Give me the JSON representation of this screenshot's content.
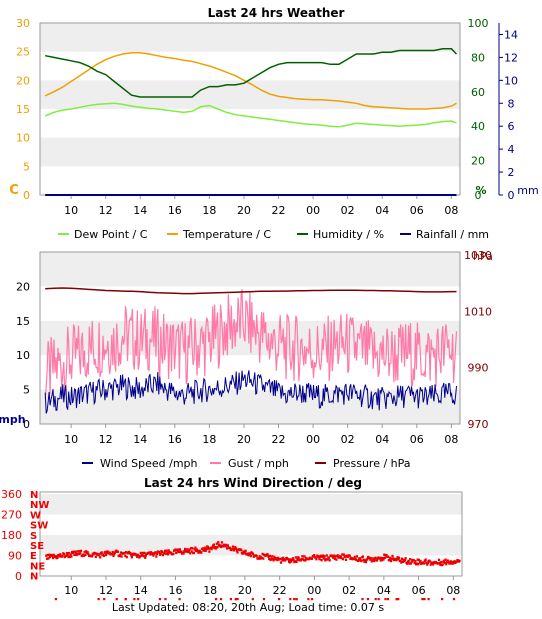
{
  "colors": {
    "dew_point": "#80ee40",
    "temperature": "#f0a000",
    "humidity": "#006000",
    "rainfall": "#000080",
    "wind_speed": "#00008b",
    "gust": "#ff7aa8",
    "pressure": "#800000",
    "wind_dir": "#ee0000",
    "grid_band": "#eeeeee"
  },
  "footer": {
    "text": "Last Updated: 08:20, 20th Aug; Load time: 0.07 s"
  },
  "chart_data": [
    {
      "type": "line",
      "title": "Last 24 hrs Weather",
      "x_ticks": [
        "10",
        "12",
        "14",
        "16",
        "18",
        "20",
        "22",
        "00",
        "02",
        "04",
        "06",
        "08"
      ],
      "y_left_label": "C",
      "y_left_ticks": [
        0,
        5,
        10,
        15,
        20,
        25,
        30
      ],
      "y_right1_label": "%",
      "y_right1_ticks": [
        0,
        20,
        40,
        60,
        80,
        100
      ],
      "y_right2_label": "mm",
      "y_right2_ticks": [
        0,
        2,
        4,
        6,
        8,
        10,
        12,
        14
      ],
      "x": [
        8.5,
        9,
        9.5,
        10,
        10.5,
        11,
        11.5,
        12,
        12.5,
        13,
        13.5,
        14,
        14.5,
        15,
        15.5,
        16,
        16.5,
        17,
        17.5,
        18,
        18.5,
        19,
        19.5,
        20,
        20.5,
        21,
        21.5,
        22,
        22.5,
        23,
        23.5,
        24,
        24.5,
        25,
        25.5,
        26,
        26.5,
        27,
        27.5,
        28,
        28.5,
        29,
        29.5,
        30,
        30.5,
        31,
        31.5,
        32,
        32.3
      ],
      "series": [
        {
          "name": "Dew Point / C",
          "axis": "C",
          "values": [
            13.8,
            14.4,
            14.8,
            15.0,
            15.3,
            15.6,
            15.8,
            15.9,
            16.0,
            15.8,
            15.5,
            15.3,
            15.1,
            15.0,
            14.8,
            14.6,
            14.4,
            14.6,
            15.4,
            15.6,
            15.0,
            14.4,
            14.0,
            13.8,
            13.6,
            13.4,
            13.2,
            13.0,
            12.8,
            12.6,
            12.4,
            12.3,
            12.2,
            12.0,
            11.9,
            12.2,
            12.5,
            12.4,
            12.3,
            12.2,
            12.1,
            12.0,
            12.1,
            12.2,
            12.3,
            12.6,
            12.8,
            12.9,
            12.6
          ]
        },
        {
          "name": "Temperature / C",
          "axis": "C",
          "values": [
            17.3,
            18.0,
            18.8,
            19.8,
            20.8,
            21.8,
            22.8,
            23.6,
            24.2,
            24.6,
            24.8,
            24.8,
            24.6,
            24.3,
            24.0,
            23.8,
            23.5,
            23.3,
            22.9,
            22.5,
            22.0,
            21.4,
            20.8,
            20.0,
            19.2,
            18.3,
            17.6,
            17.2,
            17.0,
            16.8,
            16.7,
            16.6,
            16.6,
            16.5,
            16.4,
            16.2,
            16.0,
            15.6,
            15.4,
            15.3,
            15.2,
            15.1,
            15.0,
            15.0,
            15.0,
            15.1,
            15.2,
            15.5,
            16.0
          ]
        },
        {
          "name": "Humidity / %",
          "axis": "%",
          "values": [
            81,
            80,
            79,
            78,
            77,
            75,
            72,
            70,
            66,
            62,
            58,
            57,
            57,
            57,
            57,
            57,
            57,
            57,
            61,
            63,
            63,
            64,
            64,
            65,
            68,
            71,
            74,
            76,
            77,
            77,
            77,
            77,
            77,
            76,
            76,
            79,
            82,
            82,
            82,
            83,
            83,
            84,
            84,
            84,
            84,
            84,
            85,
            85,
            82
          ]
        },
        {
          "name": "Rainfall / mm",
          "axis": "mm",
          "values": [
            0,
            0,
            0,
            0,
            0,
            0,
            0,
            0,
            0,
            0,
            0,
            0,
            0,
            0,
            0,
            0,
            0,
            0,
            0,
            0,
            0,
            0,
            0,
            0,
            0,
            0,
            0,
            0,
            0,
            0,
            0,
            0,
            0,
            0,
            0,
            0,
            0,
            0,
            0,
            0,
            0,
            0,
            0,
            0,
            0,
            0,
            0,
            0,
            0
          ]
        }
      ]
    },
    {
      "type": "line",
      "title": "",
      "x_ticks": [
        "10",
        "12",
        "14",
        "16",
        "18",
        "20",
        "22",
        "00",
        "02",
        "04",
        "06",
        "08"
      ],
      "y_left_label": "mph",
      "y_left_ticks": [
        0,
        5,
        10,
        15,
        20
      ],
      "y_right_label": "hPa",
      "y_right_ticks": [
        970,
        990,
        1010,
        1030
      ],
      "x": [
        8.5,
        9,
        9.5,
        10,
        10.5,
        11,
        11.5,
        12,
        12.5,
        13,
        13.5,
        14,
        14.5,
        15,
        15.5,
        16,
        16.5,
        17,
        17.5,
        18,
        18.5,
        19,
        19.5,
        20,
        20.5,
        21,
        21.5,
        22,
        22.5,
        23,
        23.5,
        24,
        24.5,
        25,
        25.5,
        26,
        26.5,
        27,
        27.5,
        28,
        28.5,
        29,
        29.5,
        30,
        30.5,
        31,
        31.5,
        32,
        32.3
      ],
      "series": [
        {
          "name": "Wind Speed /mph",
          "axis": "mph",
          "values": [
            3,
            3.5,
            4,
            3.8,
            4.2,
            4.5,
            4.8,
            5,
            5.2,
            5.5,
            5.2,
            5,
            5.5,
            5.8,
            5,
            4.5,
            4.2,
            4.5,
            4.8,
            5,
            5.2,
            5.5,
            5.8,
            6.5,
            6,
            5.5,
            5,
            4.5,
            4.2,
            4.5,
            4.5,
            4.2,
            4,
            4.2,
            4.5,
            4.5,
            4.3,
            4,
            3.8,
            3.6,
            3.8,
            4,
            4.2,
            4,
            3.8,
            4,
            4.2,
            4.5,
            4.2
          ]
        },
        {
          "name": "Gust / mph",
          "axis": "mph",
          "values": [
            7,
            8,
            9,
            9.5,
            10,
            11,
            11.5,
            12,
            12,
            13,
            12.5,
            12,
            12.5,
            12,
            11.5,
            11,
            10.5,
            11,
            11.5,
            12,
            13,
            14,
            14.5,
            15,
            14,
            13,
            12,
            11.5,
            11,
            11,
            11,
            10.5,
            10.5,
            11,
            11.5,
            11.5,
            11,
            10.5,
            10,
            10,
            10,
            10,
            10.5,
            10,
            10,
            10,
            10.5,
            11,
            10
          ]
        },
        {
          "name": "Pressure / hPa",
          "axis": "hPa",
          "values": [
            1018,
            1018.2,
            1018.3,
            1018.2,
            1018,
            1017.8,
            1017.6,
            1017.4,
            1017.3,
            1017.2,
            1017.1,
            1017,
            1016.8,
            1016.6,
            1016.5,
            1016.4,
            1016.3,
            1016.3,
            1016.4,
            1016.5,
            1016.6,
            1016.7,
            1016.8,
            1016.9,
            1017,
            1017.1,
            1017.1,
            1017.2,
            1017.2,
            1017.3,
            1017.3,
            1017.4,
            1017.4,
            1017.5,
            1017.5,
            1017.5,
            1017.5,
            1017.4,
            1017.4,
            1017.3,
            1017.3,
            1017.2,
            1017.1,
            1017,
            1016.9,
            1016.9,
            1016.9,
            1017,
            1017
          ]
        }
      ]
    },
    {
      "type": "scatter",
      "title": "Last 24 hrs Wind Direction / deg",
      "x_ticks": [
        "10",
        "12",
        "14",
        "16",
        "18",
        "20",
        "22",
        "00",
        "02",
        "04",
        "06",
        "08"
      ],
      "y_left_ticks": [
        0,
        90,
        180,
        270,
        360
      ],
      "y_compass_labels": [
        "N",
        "NW",
        "W",
        "SW",
        "S",
        "SE",
        "E",
        "NE",
        "N"
      ],
      "x": [
        8.5,
        9,
        9.5,
        10,
        10.5,
        11,
        11.5,
        12,
        12.5,
        13,
        13.5,
        14,
        14.5,
        15,
        15.5,
        16,
        16.5,
        17,
        17.5,
        18,
        18.5,
        19,
        19.5,
        20,
        20.5,
        21,
        21.5,
        22,
        22.5,
        23,
        23.5,
        24,
        24.5,
        25,
        25.5,
        26,
        26.5,
        27,
        27.5,
        28,
        28.5,
        29,
        29.5,
        30,
        30.5,
        31,
        31.5,
        32,
        32.3
      ],
      "series": [
        {
          "name": "Wind Direction / deg",
          "axis": "deg",
          "values": [
            80,
            85,
            90,
            95,
            100,
            95,
            92,
            98,
            100,
            95,
            92,
            90,
            95,
            98,
            100,
            105,
            110,
            112,
            115,
            120,
            140,
            128,
            110,
            100,
            90,
            85,
            80,
            70,
            68,
            72,
            78,
            80,
            78,
            82,
            85,
            80,
            75,
            72,
            78,
            82,
            75,
            68,
            65,
            62,
            60,
            58,
            62,
            65,
            68
          ]
        }
      ]
    }
  ]
}
